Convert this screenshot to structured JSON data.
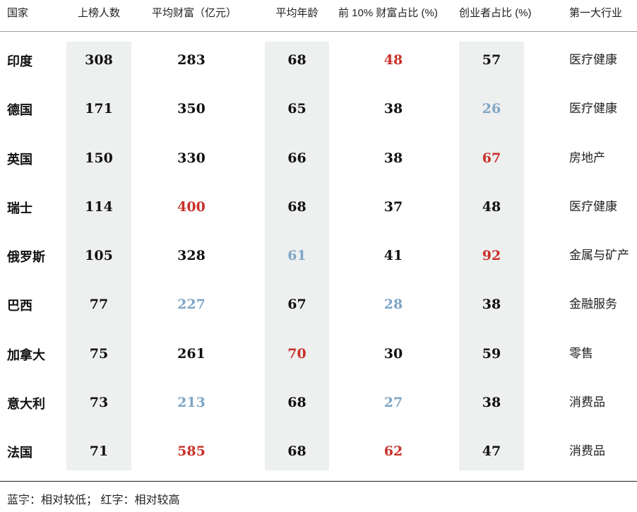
{
  "columns": [
    "国家",
    "上榜人数",
    "平均财富（亿元）",
    "平均年龄",
    "前 10% 财富占比 (%)",
    "创业者占比 (%)",
    "第一大行业"
  ],
  "rows": [
    {
      "country": "印度",
      "count": "308",
      "wealth": "283",
      "age": "68",
      "top10": "48",
      "founders": "57",
      "industry": "医疗健康"
    },
    {
      "country": "德国",
      "count": "171",
      "wealth": "350",
      "age": "65",
      "top10": "38",
      "founders": "26",
      "industry": "医疗健康"
    },
    {
      "country": "英国",
      "count": "150",
      "wealth": "330",
      "age": "66",
      "top10": "38",
      "founders": "67",
      "industry": "房地产"
    },
    {
      "country": "瑞士",
      "count": "114",
      "wealth": "400",
      "age": "68",
      "top10": "37",
      "founders": "48",
      "industry": "医疗健康"
    },
    {
      "country": "俄罗斯",
      "count": "105",
      "wealth": "328",
      "age": "61",
      "top10": "41",
      "founders": "92",
      "industry": "金属与矿产"
    },
    {
      "country": "巴西",
      "count": "77",
      "wealth": "227",
      "age": "67",
      "top10": "28",
      "founders": "38",
      "industry": "金融服务"
    },
    {
      "country": "加拿大",
      "count": "75",
      "wealth": "261",
      "age": "70",
      "top10": "30",
      "founders": "59",
      "industry": "零售"
    },
    {
      "country": "意大利",
      "count": "73",
      "wealth": "213",
      "age": "68",
      "top10": "27",
      "founders": "38",
      "industry": "消费品"
    },
    {
      "country": "法国",
      "count": "71",
      "wealth": "585",
      "age": "68",
      "top10": "62",
      "founders": "47",
      "industry": "消费品"
    }
  ],
  "highlights": {
    "high_color": "#c8312a",
    "low_color": "#7fa6c6",
    "cells": [
      {
        "row": 0,
        "col": "top10",
        "level": "high"
      },
      {
        "row": 1,
        "col": "founders",
        "level": "low"
      },
      {
        "row": 2,
        "col": "founders",
        "level": "high"
      },
      {
        "row": 3,
        "col": "wealth",
        "level": "high"
      },
      {
        "row": 4,
        "col": "age",
        "level": "low"
      },
      {
        "row": 4,
        "col": "founders",
        "level": "high"
      },
      {
        "row": 5,
        "col": "wealth",
        "level": "low"
      },
      {
        "row": 5,
        "col": "top10",
        "level": "low"
      },
      {
        "row": 6,
        "col": "age",
        "level": "high"
      },
      {
        "row": 7,
        "col": "wealth",
        "level": "low"
      },
      {
        "row": 7,
        "col": "top10",
        "level": "low"
      },
      {
        "row": 8,
        "col": "wealth",
        "level": "high"
      },
      {
        "row": 8,
        "col": "top10",
        "level": "high"
      }
    ]
  },
  "footnote": "蓝字：相对较低；  红字：相对较高"
}
